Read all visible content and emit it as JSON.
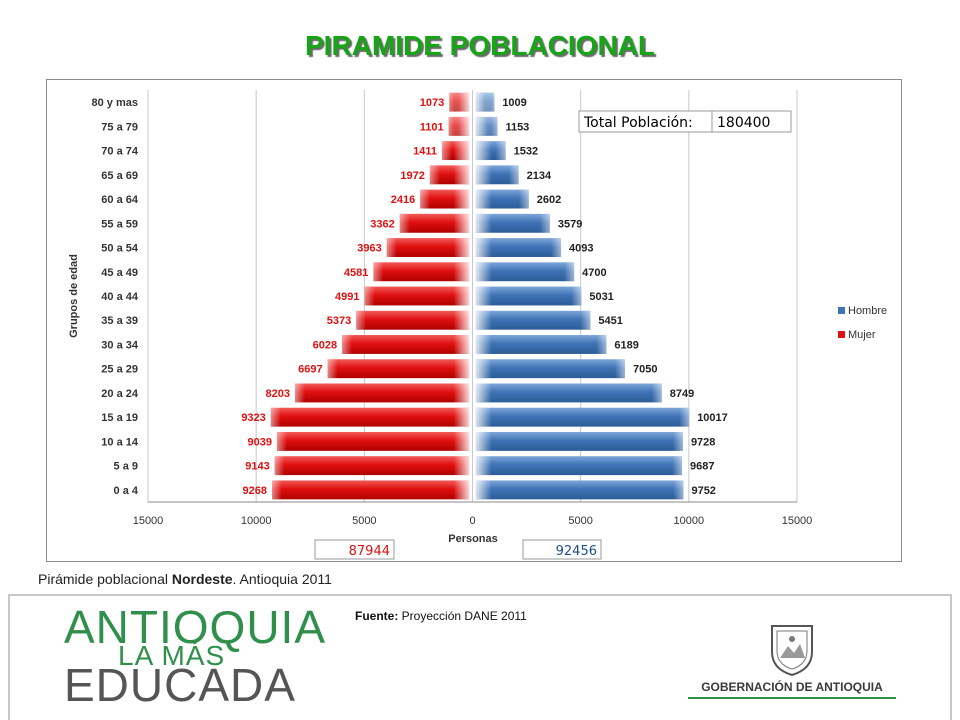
{
  "title": "PIRAMIDE POBLACIONAL",
  "caption": {
    "prefix": "Pirámide poblacional ",
    "region": "Nordeste",
    "suffix": ". Antioquia 2011"
  },
  "source": {
    "label": "Fuente:",
    "text": " Proyección DANE 2011"
  },
  "logo": {
    "line1": "ANTIOQUIA",
    "line2": "LA MÁS",
    "line3": "EDUCADA"
  },
  "government": "GOBERNACIÓN DE ANTIOQUIA",
  "colors": {
    "hombre": "#3f74b6",
    "mujer": "#e01010",
    "mujer_label": "#e01010",
    "title": "#16a516"
  },
  "chart_data": {
    "type": "bar",
    "orientation": "horizontal-pyramid",
    "categories": [
      "80 y mas",
      "75 a 79",
      "70 a 74",
      "65 a 69",
      "60 a 64",
      "55 a 59",
      "50 a 54",
      "45 a 49",
      "40 a 44",
      "35 a 39",
      "30 a 34",
      "25 a 29",
      "20 a 24",
      "15 a 19",
      "10 a 14",
      "5 a 9",
      "0 a 4"
    ],
    "series": [
      {
        "name": "Hombre",
        "values": [
          1009,
          1153,
          1532,
          2134,
          2602,
          3579,
          4093,
          4700,
          5031,
          5451,
          6189,
          7050,
          8749,
          10017,
          9728,
          9687,
          9752
        ]
      },
      {
        "name": "Mujer",
        "values": [
          1073,
          1101,
          1411,
          1972,
          2416,
          3362,
          3963,
          4581,
          4991,
          5373,
          6028,
          6697,
          8203,
          9323,
          9039,
          9143,
          9268
        ]
      }
    ],
    "xlabel": "Personas",
    "ylabel": "Grupos de edad",
    "xticks": [
      "15000",
      "10000",
      "5000",
      "0",
      "5000",
      "10000",
      "15000"
    ],
    "xlim": [
      -15000,
      15000
    ],
    "legend": "right",
    "grid": true,
    "total_label": "Total Población:",
    "total_value": "180400",
    "total_mujer": "87944",
    "total_hombre": "92456"
  }
}
